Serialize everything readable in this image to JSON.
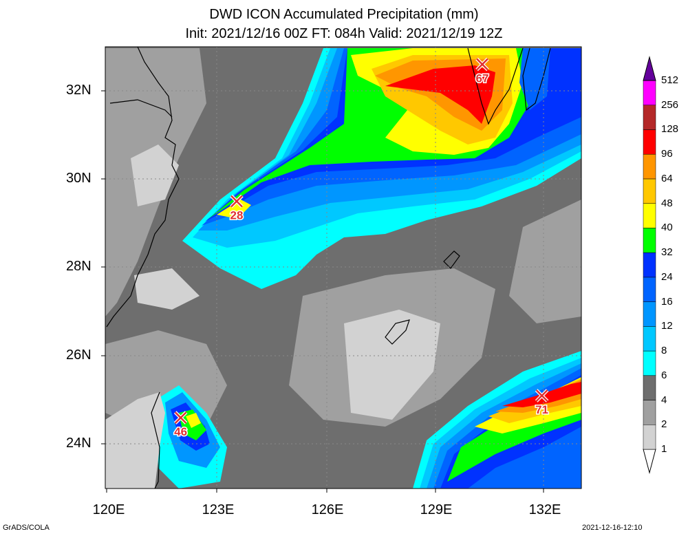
{
  "title_line1": "DWD ICON Accumulated Precipitation (mm)",
  "title_line2": "Init: 2021/12/16 00Z  FT: 084h  Valid: 2021/12/19 12Z",
  "lat_labels": [
    "32N",
    "30N",
    "28N",
    "26N",
    "24N"
  ],
  "lon_labels": [
    "120E",
    "123E",
    "126E",
    "129E",
    "132E"
  ],
  "colorbar": {
    "labels": [
      "1",
      "2",
      "4",
      "6",
      "8",
      "12",
      "16",
      "24",
      "32",
      "40",
      "48",
      "64",
      "96",
      "128",
      "256",
      "512"
    ],
    "colors": [
      "#d2d2d2",
      "#a0a0a0",
      "#6e6e6e",
      "#00ffff",
      "#00c8ff",
      "#0096ff",
      "#0064ff",
      "#0032ff",
      "#00ff00",
      "#ffff00",
      "#ffc800",
      "#ff9600",
      "#ff0000",
      "#b42828",
      "#ff00ff",
      "#c800c8",
      "#9600c8",
      "#64009b"
    ]
  },
  "markers": [
    {
      "label": "67",
      "lon": 130.4,
      "lat": 32.6
    },
    {
      "label": "28",
      "lon": 123.6,
      "lat": 29.5
    },
    {
      "label": "46",
      "lon": 122.05,
      "lat": 24.6
    },
    {
      "label": "71",
      "lon": 132.05,
      "lat": 25.1
    }
  ],
  "footer_left": "GrADS/COLA",
  "footer_right": "2021-12-16-12:10"
}
